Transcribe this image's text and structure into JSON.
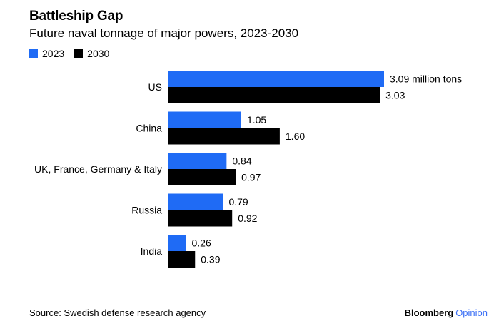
{
  "header": {
    "title": "Battleship Gap",
    "subtitle": "Future naval tonnage of major powers, 2023-2030"
  },
  "legend": [
    {
      "label": "2023",
      "color": "#1f6bf5"
    },
    {
      "label": "2030",
      "color": "#000000"
    }
  ],
  "chart_data": {
    "type": "bar",
    "orientation": "horizontal",
    "categories": [
      "US",
      "China",
      "UK, France, Germany & Italy",
      "Russia",
      "India"
    ],
    "series": [
      {
        "name": "2023",
        "values": [
          3.09,
          1.05,
          0.84,
          0.79,
          0.26
        ],
        "color": "#1f6bf5"
      },
      {
        "name": "2030",
        "values": [
          3.03,
          1.6,
          0.97,
          0.92,
          0.39
        ],
        "color": "#000000"
      }
    ],
    "value_labels": [
      [
        "3.09 million tons",
        "1.05",
        "0.84",
        "0.79",
        "0.26"
      ],
      [
        "3.03",
        "1.60",
        "0.97",
        "0.92",
        "0.39"
      ]
    ],
    "unit": "million tons",
    "xlim": [
      0,
      3.09
    ],
    "grid": false,
    "legend_position": "top-left"
  },
  "footer": {
    "source": "Source: Swedish defense research agency",
    "brand": "Bloomberg",
    "brand_suffix": "Opinion"
  }
}
